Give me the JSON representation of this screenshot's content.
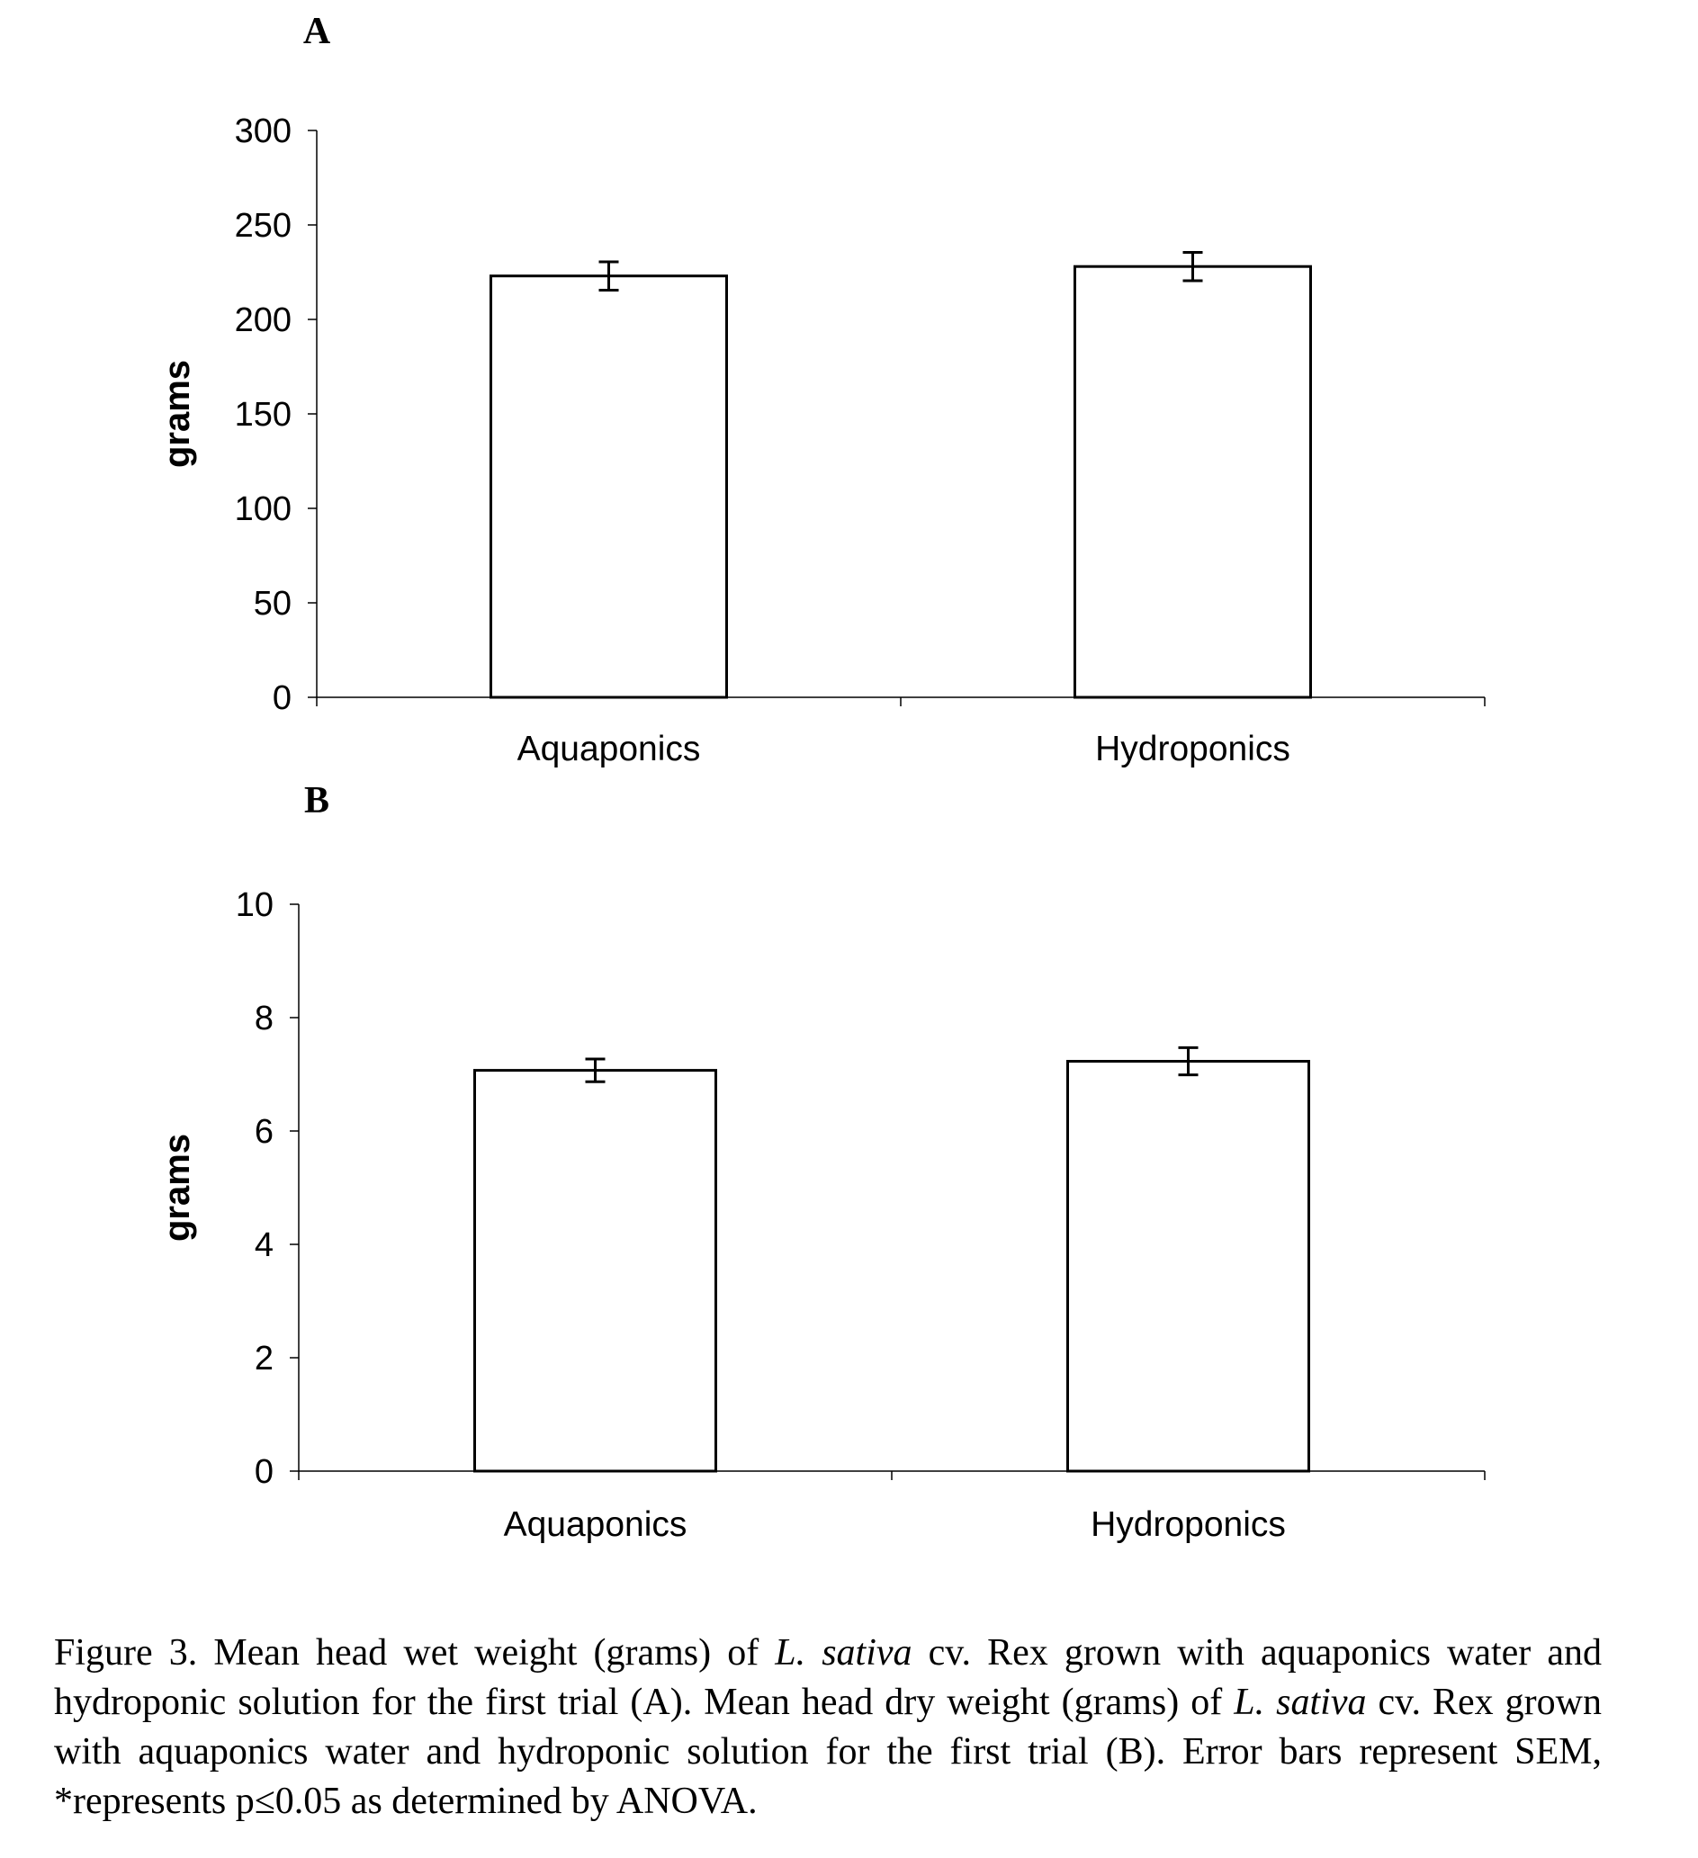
{
  "chart_data": [
    {
      "type": "bar",
      "panel_label": "A",
      "categories": [
        "Aquaponics",
        "Hydroponics"
      ],
      "values": [
        223,
        228
      ],
      "errors": [
        7.5,
        7.5
      ],
      "ylabel": "grams",
      "ylim": [
        0,
        300
      ],
      "yticks": [
        "0",
        "50",
        "100",
        "150",
        "200",
        "250",
        "300"
      ],
      "grid": false,
      "bar_fill": "#ffffff",
      "bar_stroke": "#000000"
    },
    {
      "type": "bar",
      "panel_label": "B",
      "categories": [
        "Aquaponics",
        "Hydroponics"
      ],
      "values": [
        7.07,
        7.23
      ],
      "errors": [
        0.2,
        0.24
      ],
      "ylabel": "grams",
      "ylim": [
        0,
        10
      ],
      "yticks": [
        "0",
        "2",
        "4",
        "6",
        "8",
        "10"
      ],
      "grid": false,
      "bar_fill": "#ffffff",
      "bar_stroke": "#000000"
    }
  ],
  "caption": {
    "part1": "Figure 3. Mean head wet weight (grams) of ",
    "species1": "L. sativa",
    "part2": " cv. Rex grown with aquaponics water and hydroponic solution for the first trial (A). Mean head dry weight (grams) of ",
    "species2": "L. sativa",
    "part3": " cv. Rex grown with aquaponics water and hydroponic solution for the first trial (B). Error bars represent SEM, *represents p≤0.05 as determined by ANOVA."
  }
}
